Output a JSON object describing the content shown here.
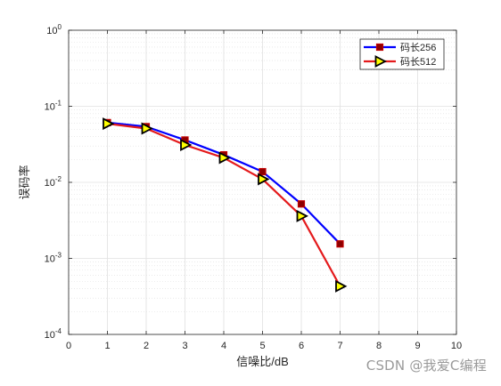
{
  "chart_data": {
    "type": "line",
    "title": "",
    "xlabel": "信噪比/dB",
    "ylabel": "误码率",
    "xlim": [
      0,
      10
    ],
    "ylim": [
      0.0001,
      1
    ],
    "yscale": "log",
    "grid": true,
    "minor_grid": true,
    "legend_position": "top-right",
    "x_ticks": [
      "0",
      "1",
      "2",
      "3",
      "4",
      "5",
      "6",
      "7",
      "8",
      "9",
      "10"
    ],
    "y_ticks": [
      {
        "value": 1,
        "base": "10",
        "exp": "0"
      },
      {
        "value": 0.1,
        "base": "10",
        "exp": "-1"
      },
      {
        "value": 0.01,
        "base": "10",
        "exp": "-2"
      },
      {
        "value": 0.001,
        "base": "10",
        "exp": "-3"
      },
      {
        "value": 0.0001,
        "base": "10",
        "exp": "-4"
      }
    ],
    "series": [
      {
        "name": "码长256",
        "color": "#0000ff",
        "marker": "square",
        "marker_face": "#8b0000",
        "x": [
          1,
          2,
          3,
          4,
          5,
          6,
          7
        ],
        "y": [
          0.061,
          0.054,
          0.036,
          0.023,
          0.0138,
          0.0052,
          0.00155
        ]
      },
      {
        "name": "码长512",
        "color": "#e41a1c",
        "marker": "triangle-right",
        "marker_face": "#ffff00",
        "x": [
          1,
          2,
          3,
          4,
          5,
          6,
          7
        ],
        "y": [
          0.059,
          0.051,
          0.031,
          0.021,
          0.011,
          0.0036,
          0.00043
        ]
      }
    ]
  },
  "watermark": "CSDN @我爱C编程"
}
